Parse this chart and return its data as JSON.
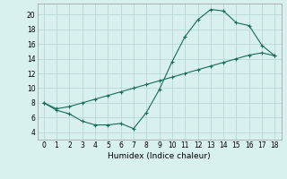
{
  "xlabel": "Humidex (Indice chaleur)",
  "ylabel": "",
  "xlim": [
    -0.5,
    18.5
  ],
  "ylim": [
    3,
    21.5
  ],
  "yticks": [
    4,
    6,
    8,
    10,
    12,
    14,
    16,
    18,
    20
  ],
  "xticks": [
    0,
    1,
    2,
    3,
    4,
    5,
    6,
    7,
    8,
    9,
    10,
    11,
    12,
    13,
    14,
    15,
    16,
    17,
    18
  ],
  "background_color": "#d8f0ee",
  "grid_color": "#b8d8d4",
  "line_color": "#1a6b5a",
  "series1_x": [
    0,
    1,
    2,
    3,
    4,
    5,
    6,
    7,
    8,
    9,
    10,
    11,
    12,
    13,
    14,
    15,
    16,
    17,
    18
  ],
  "series1_y": [
    8.0,
    7.0,
    6.5,
    5.5,
    5.0,
    5.0,
    5.2,
    4.5,
    6.7,
    9.8,
    13.6,
    17.0,
    19.3,
    20.7,
    20.5,
    18.9,
    18.5,
    15.8,
    14.4
  ],
  "series2_x": [
    0,
    1,
    2,
    3,
    4,
    5,
    6,
    7,
    8,
    9,
    10,
    11,
    12,
    13,
    14,
    15,
    16,
    17,
    18
  ],
  "series2_y": [
    8.0,
    7.2,
    7.5,
    8.0,
    8.5,
    9.0,
    9.5,
    10.0,
    10.5,
    11.0,
    11.5,
    12.0,
    12.5,
    13.0,
    13.5,
    14.0,
    14.5,
    14.8,
    14.4
  ]
}
